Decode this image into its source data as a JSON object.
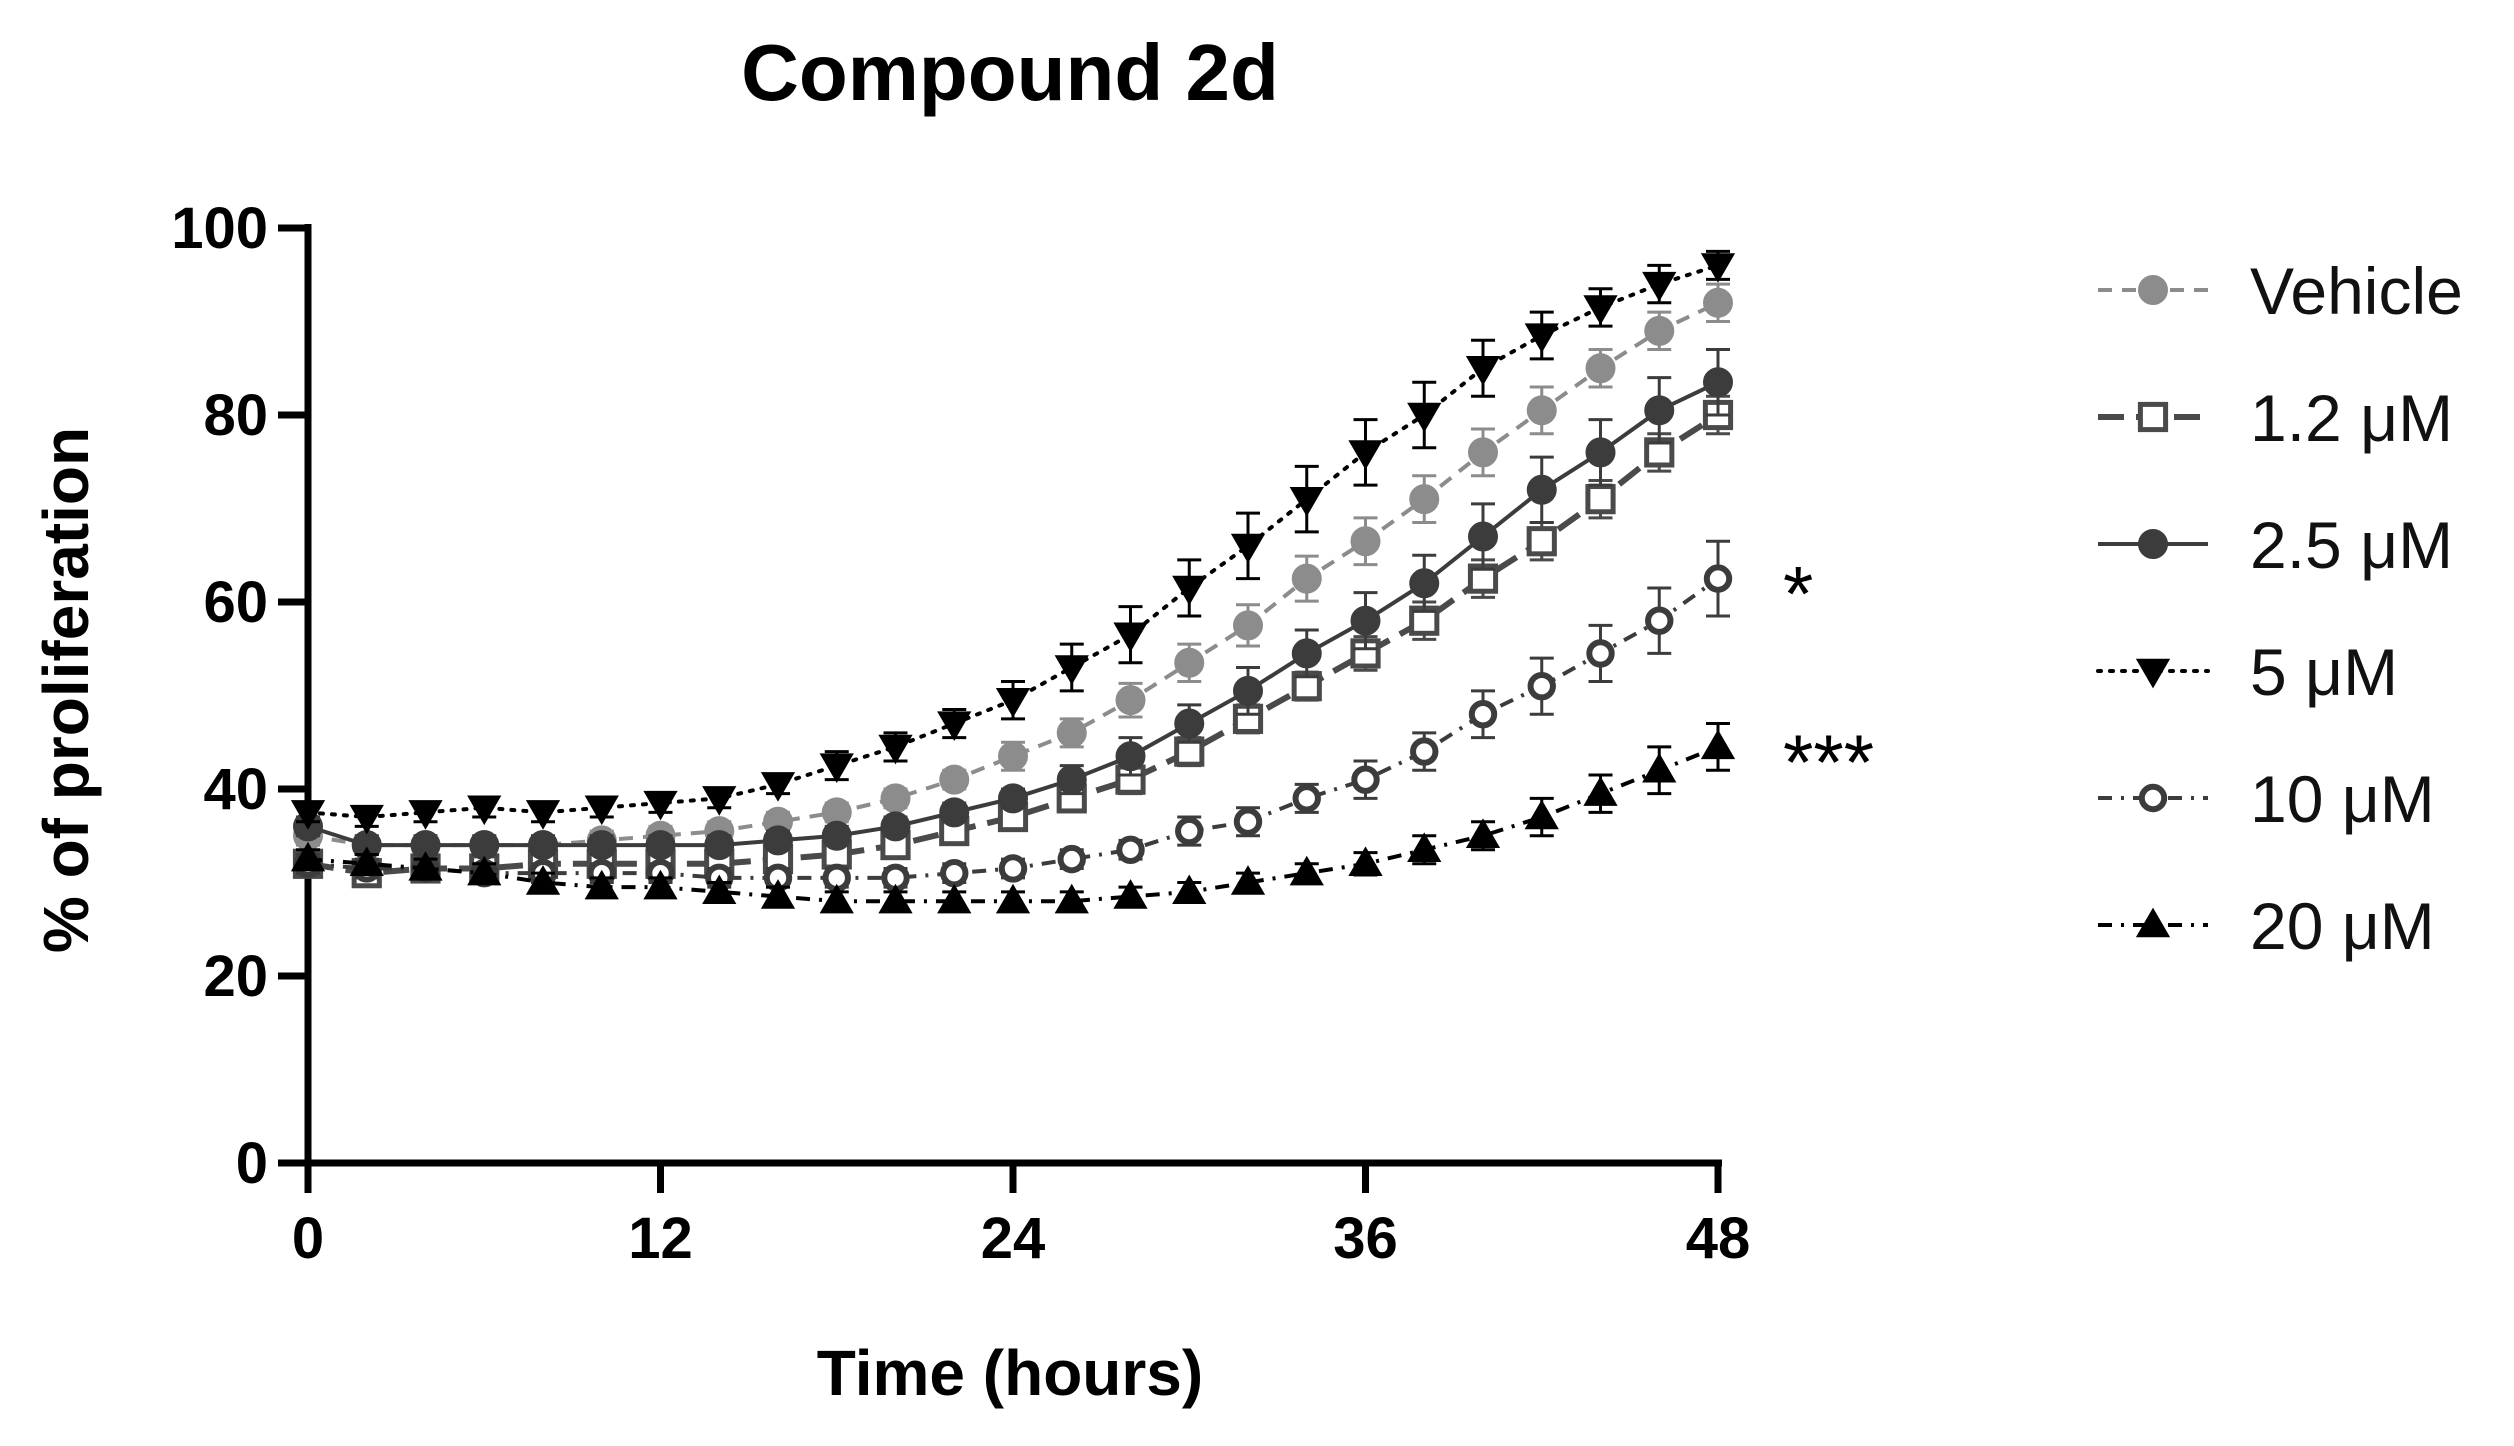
{
  "chart_data": {
    "type": "line",
    "title": "Compound 2d",
    "xlabel": "Time (hours)",
    "ylabel": "% of proliferation",
    "xlim": [
      0,
      48
    ],
    "ylim": [
      0,
      100
    ],
    "xticks": [
      "0",
      "12",
      "24",
      "36",
      "48"
    ],
    "yticks": [
      "0",
      "20",
      "40",
      "60",
      "80",
      "100"
    ],
    "grid": false,
    "legend": "right",
    "x": [
      0,
      2,
      4,
      6,
      8,
      10,
      12,
      14,
      16,
      18,
      20,
      22,
      24,
      26,
      28,
      30,
      32,
      34,
      36,
      38,
      40,
      42,
      44,
      46,
      48
    ],
    "series": [
      {
        "name": "Vehicle",
        "color": "#8c8c8c",
        "marker": "circle-filled",
        "line": "dashed",
        "values": [
          35,
          34,
          34,
          34,
          34,
          34.5,
          35,
          35.5,
          36.5,
          37.5,
          39,
          41,
          43.5,
          46,
          49.5,
          53.5,
          57.5,
          62.5,
          66.5,
          71,
          76,
          80.5,
          85,
          89,
          92
        ],
        "errors": [
          1,
          1,
          1,
          1,
          1,
          1,
          1,
          1,
          1,
          1,
          1,
          1,
          1.5,
          1.5,
          1.8,
          2,
          2.2,
          2.4,
          2.5,
          2.5,
          2.5,
          2.5,
          2,
          2,
          2
        ]
      },
      {
        "name": "1.2 μM",
        "color": "#4a4a4a",
        "marker": "square-open",
        "line": "long-dashed",
        "values": [
          32,
          31,
          31.5,
          31.5,
          32,
          32,
          32,
          32,
          32.5,
          33,
          34,
          35.5,
          37,
          39,
          41,
          44,
          47.5,
          51,
          54.5,
          58,
          62.5,
          66.5,
          71,
          76,
          80
        ],
        "errors": [
          1,
          1,
          1,
          1,
          1,
          1,
          1,
          1,
          1,
          1,
          1,
          1,
          1,
          1.2,
          1.5,
          1.5,
          1.5,
          1.5,
          1.8,
          2,
          2,
          2,
          2,
          2,
          2
        ]
      },
      {
        "name": "2.5 μM",
        "color": "#3c3c3c",
        "marker": "circle-filled",
        "line": "solid",
        "values": [
          36,
          34,
          34,
          34,
          34,
          34,
          34,
          34,
          34.5,
          35,
          36,
          37.5,
          39,
          41,
          43.5,
          47,
          50.5,
          54.5,
          58,
          62,
          67,
          72,
          76,
          80.5,
          83.5
        ],
        "errors": [
          1,
          1,
          1,
          1,
          1,
          1,
          1,
          1,
          1,
          1,
          1,
          1,
          1,
          1.5,
          2,
          2,
          2.5,
          2.5,
          3,
          3,
          3.5,
          3.5,
          3.5,
          3.5,
          3.5
        ]
      },
      {
        "name": "5 μM",
        "color": "#000000",
        "marker": "triangle-down",
        "line": "dotted",
        "values": [
          37.5,
          37,
          37.5,
          38,
          37.5,
          38,
          38.5,
          39,
          40.5,
          42.5,
          44.5,
          47,
          49.5,
          53,
          56.5,
          61.5,
          66,
          71,
          76,
          80,
          85,
          88.5,
          91.5,
          94,
          96
        ],
        "errors": [
          1,
          1,
          1,
          1,
          1,
          1,
          1,
          1,
          1,
          1.5,
          1.5,
          1.5,
          2,
          2.5,
          3,
          3,
          3.5,
          3.5,
          3.5,
          3.5,
          3,
          2.5,
          2,
          2,
          1.5
        ]
      },
      {
        "name": "10 μM",
        "color": "#3c3c3c",
        "marker": "circle-open",
        "line": "dash-dot",
        "values": [
          32,
          31.5,
          31.5,
          31,
          31,
          31,
          31,
          30.5,
          30.5,
          30.5,
          30.5,
          31,
          31.5,
          32.5,
          33.5,
          35.5,
          36.5,
          39,
          41,
          44,
          48,
          51,
          54.5,
          58,
          62.5
        ],
        "errors": [
          1,
          1,
          1,
          1,
          1,
          1,
          1,
          1,
          1,
          1,
          1,
          1,
          1,
          1,
          1,
          1.5,
          1.5,
          1.5,
          2,
          2,
          2.5,
          3,
          3,
          3.5,
          4
        ]
      },
      {
        "name": "20 μM",
        "color": "#000000",
        "marker": "triangle-up",
        "line": "dash-dot",
        "values": [
          32.5,
          32,
          31.5,
          31,
          30,
          29.5,
          29.5,
          29,
          28.5,
          28,
          28,
          28,
          28,
          28,
          28.5,
          29,
          30,
          31,
          32,
          33.5,
          35,
          37,
          39.5,
          42,
          44.5
        ],
        "errors": [
          1,
          1,
          1,
          1,
          1,
          1,
          1,
          1,
          1,
          1,
          1,
          1,
          1,
          1,
          1,
          1,
          1,
          1,
          1.2,
          1.5,
          1.5,
          2,
          2,
          2.5,
          2.5
        ]
      }
    ],
    "annotations": [
      {
        "text": "*",
        "series": "10 μM"
      },
      {
        "text": "***",
        "series": "20 μM"
      }
    ]
  }
}
